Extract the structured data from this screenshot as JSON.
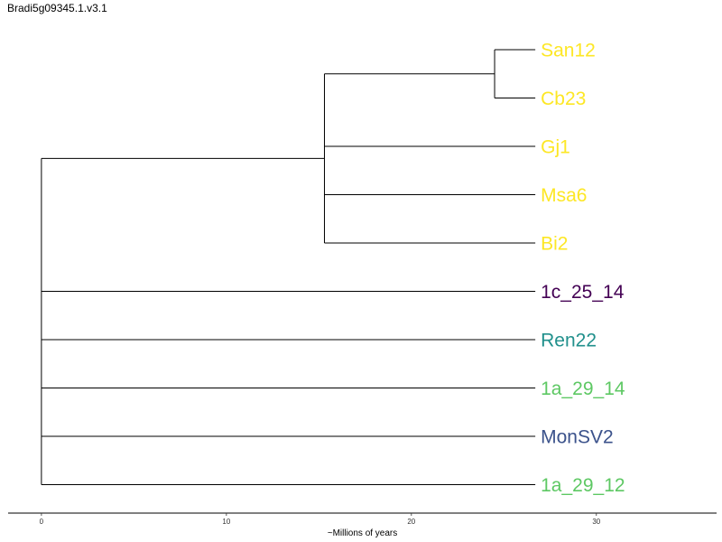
{
  "title": "Bradi5g09345.1.v3.1",
  "chart_data": {
    "type": "tree",
    "xlabel": "~Millions of years",
    "xticks": [
      0,
      10,
      20,
      30
    ],
    "xlim": [
      -1.8,
      36.5
    ],
    "tips": [
      {
        "name": "San12",
        "color": "#FDE725"
      },
      {
        "name": "Cb23",
        "color": "#FDE725"
      },
      {
        "name": "Gj1",
        "color": "#FDE725"
      },
      {
        "name": "Msa6",
        "color": "#FDE725"
      },
      {
        "name": "Bi2",
        "color": "#FDE725"
      },
      {
        "name": "1c_25_14",
        "color": "#440154"
      },
      {
        "name": "Ren22",
        "color": "#21908C"
      },
      {
        "name": "1a_29_14",
        "color": "#5DC863"
      },
      {
        "name": "MonSV2",
        "color": "#3B528B"
      },
      {
        "name": "1a_29_12",
        "color": "#5DC863"
      }
    ],
    "tree": {
      "name": "root",
      "age": 0,
      "children": [
        {
          "name": "clade_A",
          "age": 15.3,
          "children": [
            {
              "name": "clade_B",
              "age": 24.5,
              "children": [
                {
                  "tip": "San12",
                  "age": 26.7
                },
                {
                  "tip": "Cb23",
                  "age": 26.7
                }
              ]
            },
            {
              "tip": "Gj1",
              "age": 26.7
            },
            {
              "tip": "Msa6",
              "age": 26.7
            },
            {
              "tip": "Bi2",
              "age": 26.7
            }
          ]
        },
        {
          "tip": "1c_25_14",
          "age": 26.7
        },
        {
          "tip": "Ren22",
          "age": 26.7
        },
        {
          "tip": "1a_29_14",
          "age": 26.7
        },
        {
          "tip": "MonSV2",
          "age": 26.7
        },
        {
          "tip": "1a_29_12",
          "age": 26.7
        }
      ]
    }
  }
}
